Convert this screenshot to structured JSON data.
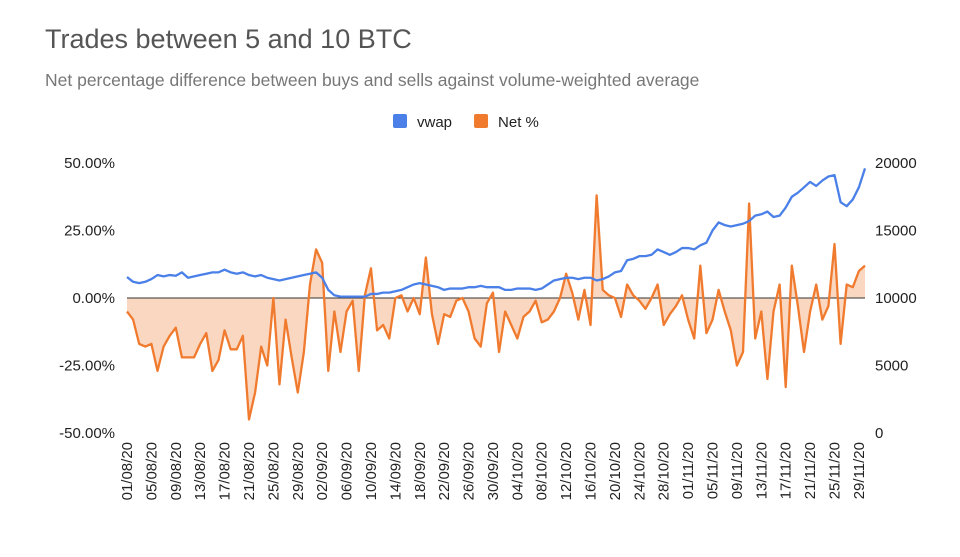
{
  "chart_data": {
    "type": "line",
    "title": "Trades between 5 and 10 BTC",
    "subtitle": "Net percentage difference between buys and sells against volume-weighted average",
    "categories": [
      "01/08/20",
      null,
      null,
      null,
      "05/08/20",
      null,
      null,
      null,
      "09/08/20",
      null,
      null,
      null,
      "13/08/20",
      null,
      null,
      null,
      "17/08/20",
      null,
      null,
      null,
      "21/08/20",
      null,
      null,
      null,
      "25/08/20",
      null,
      null,
      null,
      "29/08/20",
      null,
      null,
      null,
      "02/09/20",
      null,
      null,
      null,
      "06/09/20",
      null,
      null,
      null,
      "10/09/20",
      null,
      null,
      null,
      "14/09/20",
      null,
      null,
      null,
      "18/09/20",
      null,
      null,
      null,
      "22/09/20",
      null,
      null,
      null,
      "26/09/20",
      null,
      null,
      null,
      "30/09/20",
      null,
      null,
      null,
      "04/10/20",
      null,
      null,
      null,
      "08/10/20",
      null,
      null,
      null,
      "12/10/20",
      null,
      null,
      null,
      "16/10/20",
      null,
      null,
      null,
      "20/10/20",
      null,
      null,
      null,
      "24/10/20",
      null,
      null,
      null,
      "28/10/20",
      null,
      null,
      null,
      "01/11/20",
      null,
      null,
      null,
      "05/11/20",
      null,
      null,
      null,
      "09/11/20",
      null,
      null,
      null,
      "13/11/20",
      null,
      null,
      null,
      "17/11/20",
      null,
      null,
      null,
      "21/11/20",
      null,
      null,
      null,
      "25/11/20",
      null,
      null,
      null,
      "29/11/20",
      null
    ],
    "series": [
      {
        "name": "vwap",
        "color": "#4a80e8",
        "axis": "y2",
        "values": [
          11550,
          11200,
          11100,
          11200,
          11400,
          11700,
          11600,
          11700,
          11650,
          11900,
          11500,
          11600,
          11700,
          11800,
          11900,
          11900,
          12100,
          11900,
          11800,
          11900,
          11700,
          11600,
          11700,
          11500,
          11400,
          11300,
          11400,
          11500,
          11600,
          11700,
          11800,
          11900,
          11500,
          10600,
          10200,
          10100,
          10100,
          10100,
          10100,
          10100,
          10300,
          10300,
          10400,
          10400,
          10500,
          10600,
          10800,
          11000,
          11100,
          11000,
          10900,
          10800,
          10600,
          10700,
          10700,
          10700,
          10800,
          10800,
          10900,
          10800,
          10800,
          10800,
          10600,
          10600,
          10700,
          10700,
          10700,
          10600,
          10700,
          11000,
          11300,
          11400,
          11500,
          11500,
          11400,
          11500,
          11500,
          11300,
          11400,
          11600,
          11900,
          12000,
          12800,
          12900,
          13100,
          13100,
          13200,
          13600,
          13400,
          13200,
          13400,
          13700,
          13700,
          13600,
          13900,
          14100,
          15000,
          15600,
          15400,
          15300,
          15400,
          15500,
          15700,
          16100,
          16200,
          16400,
          16000,
          16100,
          16700,
          17500,
          17800,
          18200,
          18600,
          18300,
          18700,
          19000,
          19100,
          17100,
          16800,
          17300,
          18200,
          19600
        ]
      },
      {
        "name": "Net %",
        "color": "#f07a2e",
        "area": true,
        "values": [
          -5,
          -8,
          -17,
          -18,
          -17,
          -27,
          -18,
          -14,
          -11,
          -22,
          -22,
          -22,
          -17,
          -13,
          -27,
          -23,
          -12,
          -19,
          -19,
          -14,
          -45,
          -35,
          -18,
          -25,
          0,
          -32,
          -8,
          -22,
          -35,
          -20,
          5,
          18,
          13,
          -27,
          -5,
          -20,
          -5,
          -1,
          -27,
          1,
          11,
          -12,
          -10,
          -15,
          0,
          1,
          -5,
          0,
          -6,
          15,
          -6,
          -17,
          -6,
          -7,
          -1,
          0,
          -5,
          -15,
          -18,
          -2,
          2,
          -20,
          -5,
          -10,
          -15,
          -7,
          -5,
          -1,
          -9,
          -8,
          -5,
          0,
          9,
          2,
          -8,
          3,
          -10,
          38,
          3,
          1,
          0,
          -7,
          5,
          1,
          -1,
          -4,
          0,
          5,
          -10,
          -6,
          -3,
          1,
          -8,
          -15,
          12,
          -13,
          -8,
          3,
          -5,
          -12,
          -25,
          -20,
          35,
          -15,
          -5,
          -30,
          -5,
          5,
          -33,
          12,
          -3,
          -20,
          -5,
          5,
          -8,
          -3,
          20,
          -17,
          5,
          4,
          10,
          12
        ]
      }
    ],
    "ylim": [
      -50,
      50
    ],
    "yticks": [
      {
        "value": -50,
        "label": "-50.00%"
      },
      {
        "value": -25,
        "label": "-25.00%"
      },
      {
        "value": 0,
        "label": "0.00%"
      },
      {
        "value": 25,
        "label": "25.00%"
      },
      {
        "value": 50,
        "label": "50.00%"
      }
    ],
    "y2lim": [
      0,
      20000
    ],
    "y2ticks": [
      0,
      5000,
      10000,
      15000,
      20000
    ],
    "legend": "top"
  }
}
